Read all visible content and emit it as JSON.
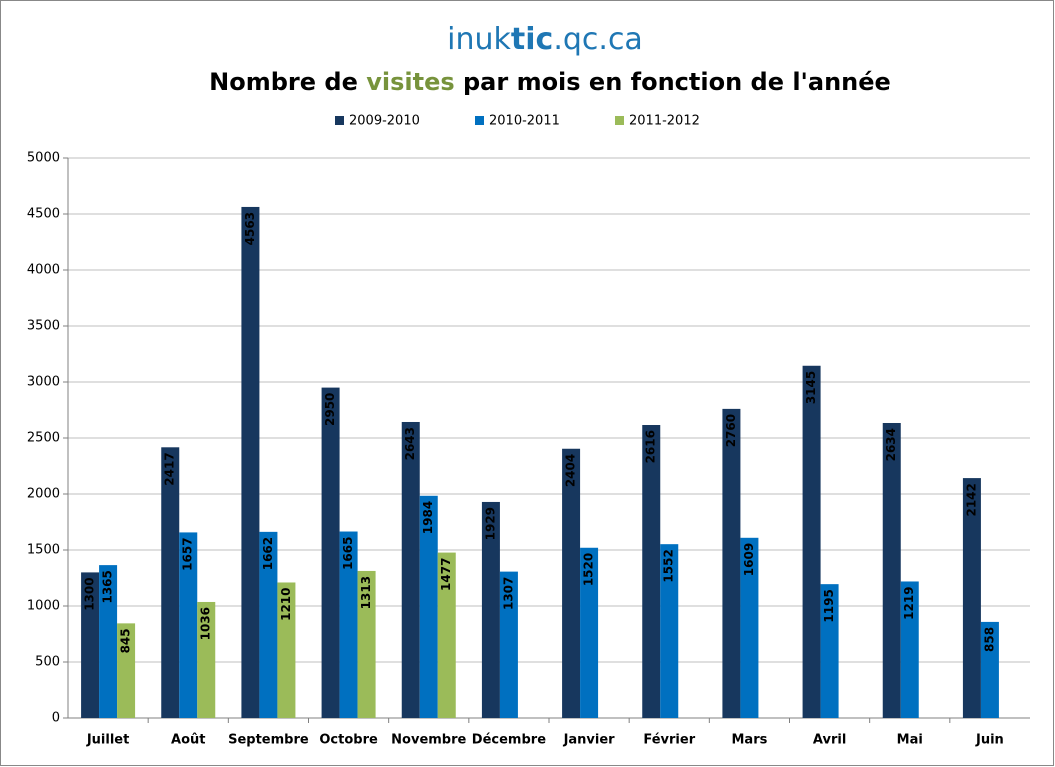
{
  "chart_data": {
    "type": "bar",
    "site": [
      "inuk",
      "tic",
      ".qc.ca"
    ],
    "title": [
      "Nombre de ",
      "visites",
      " par mois en fonction de l'année"
    ],
    "categories": [
      "Juillet",
      "Août",
      "Septembre",
      "Octobre",
      "Novembre",
      "Décembre",
      "Janvier",
      "Février",
      "Mars",
      "Avril",
      "Mai",
      "Juin"
    ],
    "series": [
      {
        "name": "2009-2010",
        "color": "#17375e",
        "label_color": "#ffffff",
        "values": [
          1300,
          2417,
          4563,
          2950,
          2643,
          1929,
          2404,
          2616,
          2760,
          3145,
          2634,
          2142
        ]
      },
      {
        "name": "2010-2011",
        "color": "#0070c0",
        "label_color": "#ffffff",
        "values": [
          1365,
          1657,
          1662,
          1665,
          1984,
          1307,
          1520,
          1552,
          1609,
          1195,
          1219,
          858
        ]
      },
      {
        "name": "2011-2012",
        "color": "#9bbb59",
        "label_color": "#000000",
        "values": [
          845,
          1036,
          1210,
          1313,
          1477,
          null,
          null,
          null,
          null,
          null,
          null,
          null
        ]
      }
    ],
    "ylim": [
      0,
      5000
    ],
    "yticks": [
      0,
      500,
      1000,
      1500,
      2000,
      2500,
      3000,
      3500,
      4000,
      4500,
      5000
    ],
    "grid": true,
    "legend": "top"
  }
}
